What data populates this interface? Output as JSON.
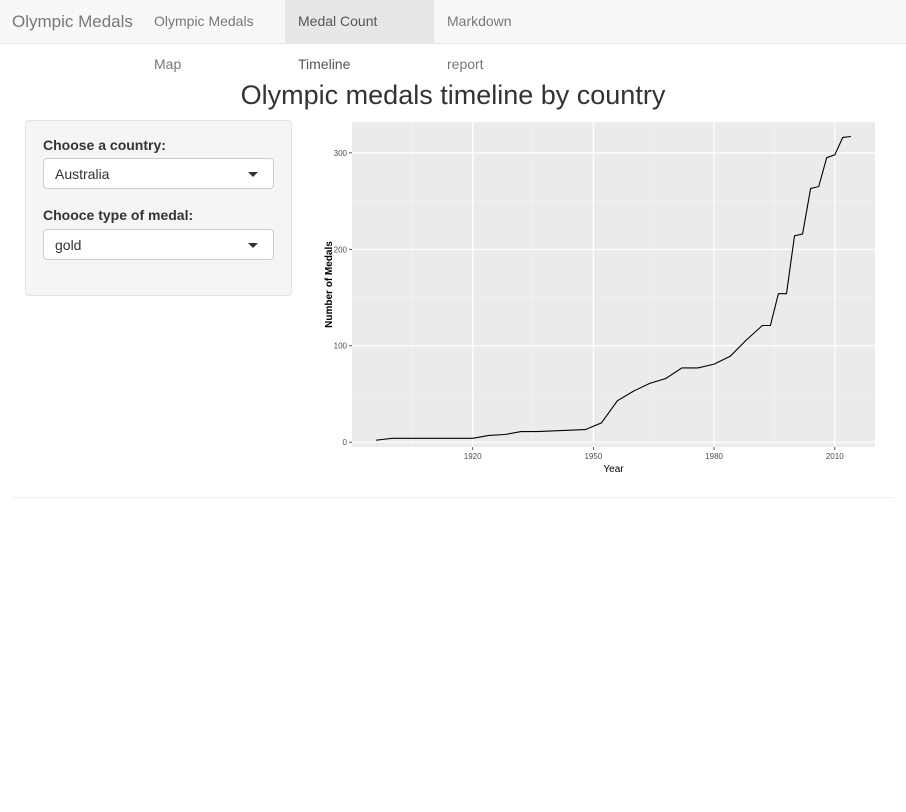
{
  "navbar": {
    "brand": "Olympic Medals",
    "tabs": [
      {
        "label": "Olympic Medals Map"
      },
      {
        "label": "Medal Count Timeline"
      },
      {
        "label": "Markdown report"
      }
    ],
    "active_tab": "Medal Count Timeline"
  },
  "page": {
    "title": "Olympic medals timeline by country"
  },
  "sidebar": {
    "country_label": "Choose a country:",
    "country_value": "Australia",
    "medal_label": "Chooce type of medal:",
    "medal_value": "gold"
  },
  "chart_data": {
    "type": "line",
    "title": "",
    "xlabel": "Year",
    "ylabel": "Number of Medals",
    "xlim": [
      1890,
      2020
    ],
    "ylim": [
      -5,
      332
    ],
    "x_ticks": [
      1920,
      1950,
      1980,
      2010
    ],
    "y_ticks": [
      0,
      100,
      200,
      300
    ],
    "grid": true,
    "line_color": "#000000",
    "panel_background": "#ebebeb",
    "x": [
      1896,
      1900,
      1904,
      1908,
      1912,
      1920,
      1924,
      1928,
      1932,
      1936,
      1948,
      1952,
      1956,
      1960,
      1964,
      1968,
      1972,
      1976,
      1980,
      1984,
      1988,
      1992,
      1994,
      1996,
      1998,
      2000,
      2002,
      2004,
      2006,
      2008,
      2010,
      2012,
      2014
    ],
    "y": [
      2,
      4,
      4,
      4,
      4,
      4,
      7,
      8,
      11,
      11,
      13,
      20,
      43,
      53,
      61,
      66,
      77,
      77,
      81,
      89,
      106,
      121,
      121,
      154,
      154,
      214,
      216,
      263,
      265,
      295,
      298,
      316,
      317
    ]
  }
}
